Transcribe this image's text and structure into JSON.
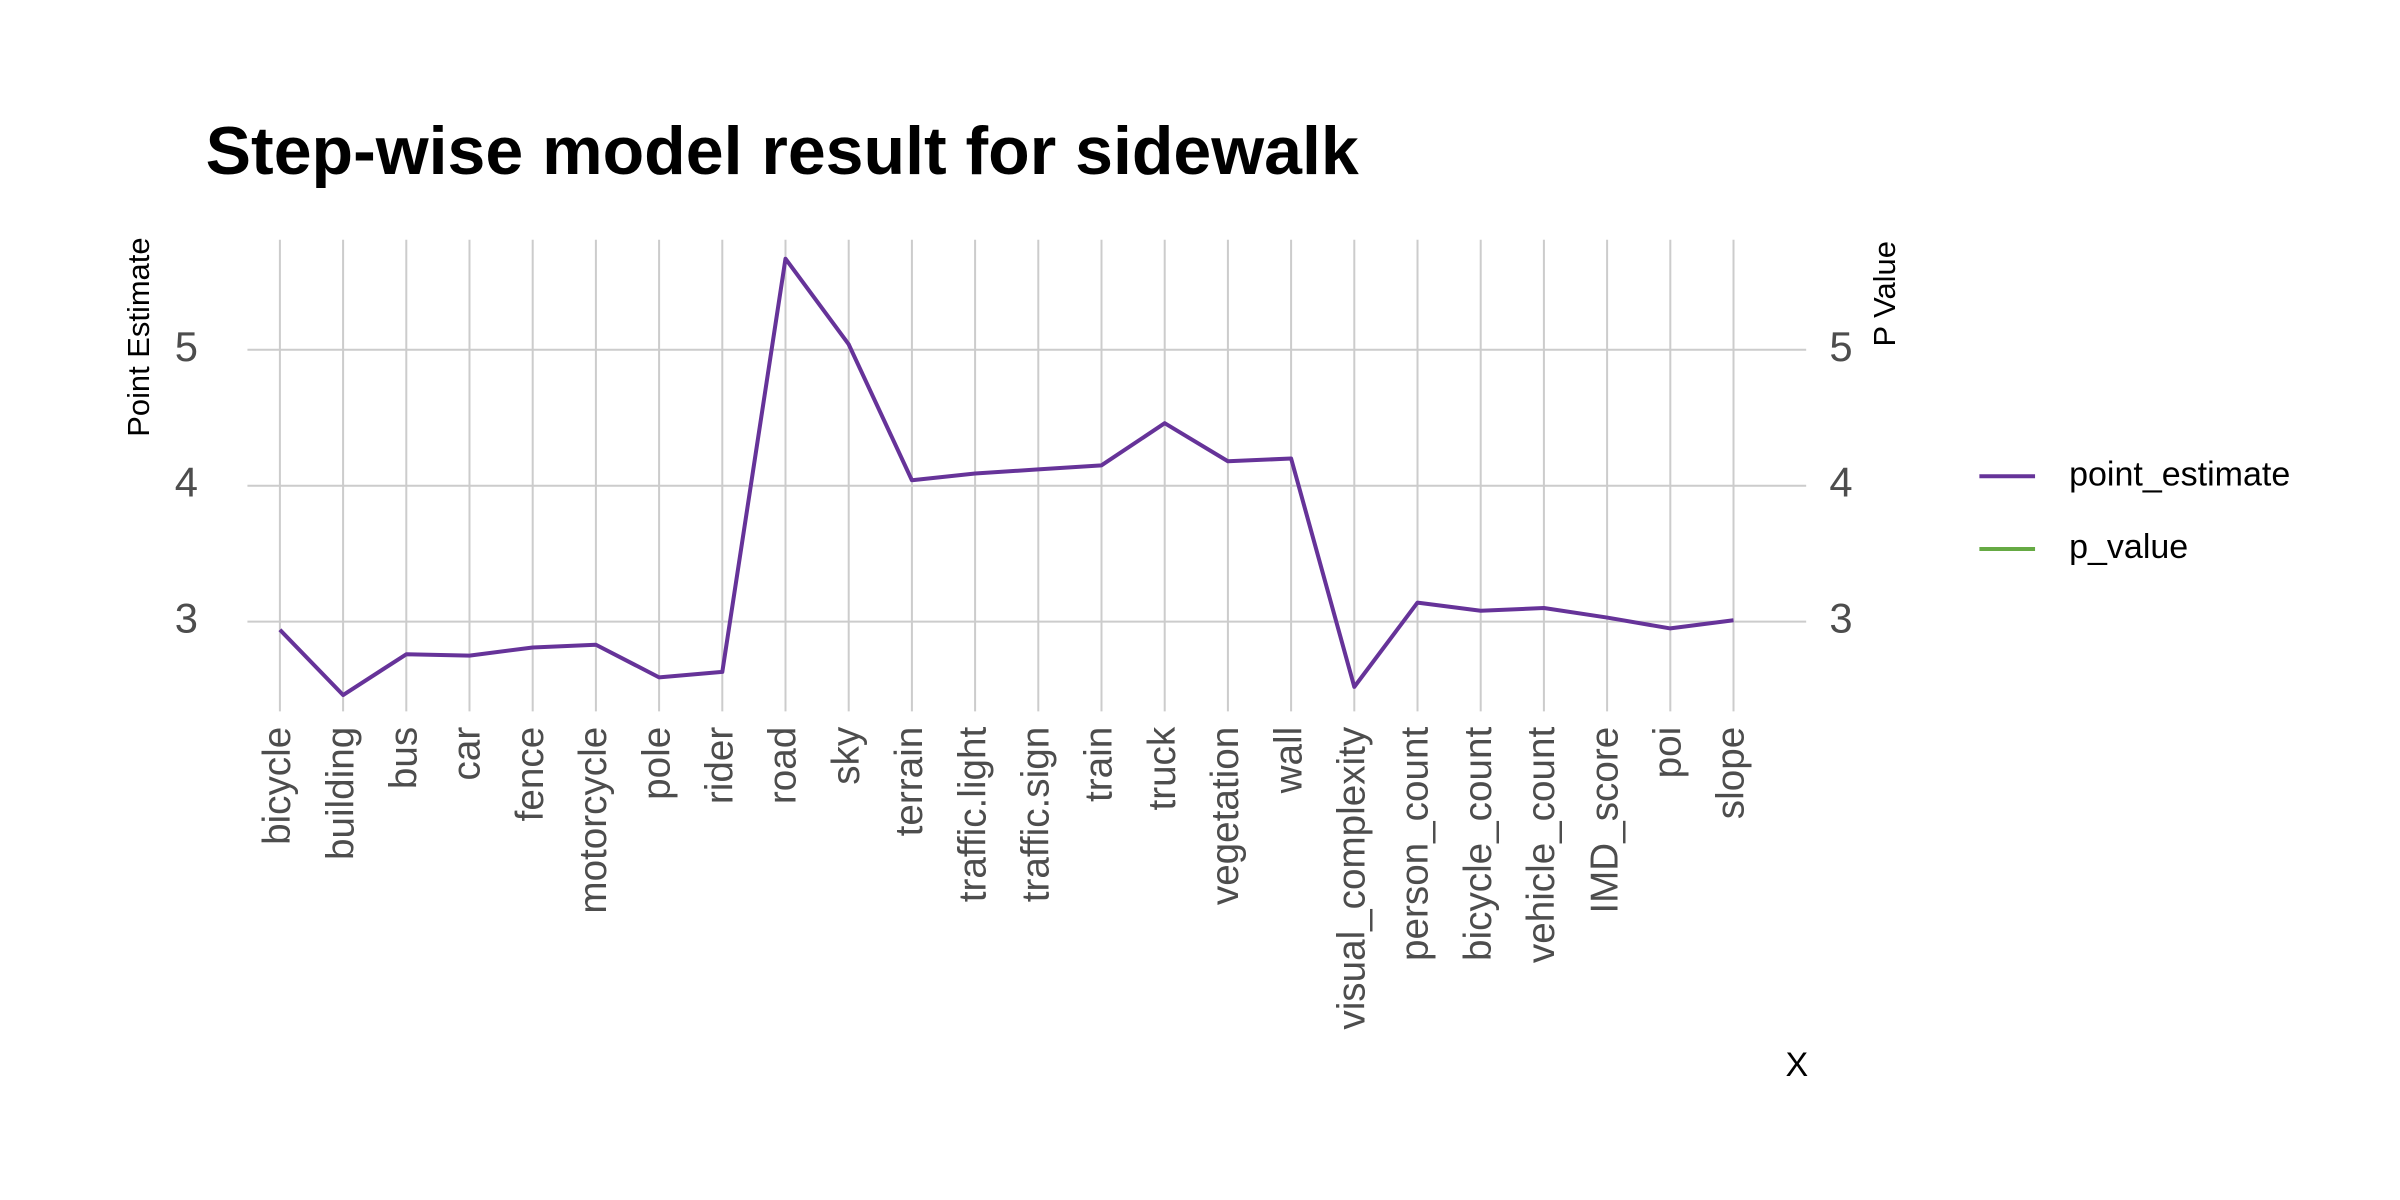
{
  "chart_data": {
    "type": "line",
    "title": "Step-wise model result for sidewalk",
    "x_label": "X",
    "y_label": "Point Estimate",
    "y2_label": "P Value",
    "categories": [
      "bicycle",
      "building",
      "bus",
      "car",
      "fence",
      "motorcycle",
      "pole",
      "rider",
      "road",
      "sky",
      "terrain",
      "traffic.light",
      "traffic.sign",
      "train",
      "truck",
      "vegetation",
      "wall",
      "visual_complexity",
      "person_count",
      "bicycle_count",
      "vehicle_count",
      "IMD_score",
      "poi",
      "slope"
    ],
    "series": [
      {
        "name": "point_estimate",
        "color": "#663399",
        "values": [
          2.94,
          2.46,
          2.76,
          2.75,
          2.81,
          2.83,
          2.59,
          2.63,
          5.67,
          5.04,
          4.04,
          4.09,
          4.12,
          4.15,
          4.46,
          4.18,
          4.2,
          2.52,
          3.14,
          3.08,
          3.1,
          3.03,
          2.95,
          3.01
        ]
      },
      {
        "name": "p_value",
        "color": "#66aa44",
        "axis": "y2",
        "values": [
          null,
          null,
          null,
          null,
          null,
          null,
          null,
          null,
          null,
          null,
          null,
          null,
          null,
          null,
          null,
          null,
          null,
          null,
          null,
          null,
          null,
          null,
          null,
          null
        ]
      }
    ],
    "ylim": [
      2.34,
      5.81
    ],
    "yticks": [
      3,
      4,
      5
    ],
    "y2lim": [
      2.34,
      5.81
    ],
    "y2ticks": [
      3,
      4,
      5
    ],
    "grid": true,
    "legend": "right"
  }
}
